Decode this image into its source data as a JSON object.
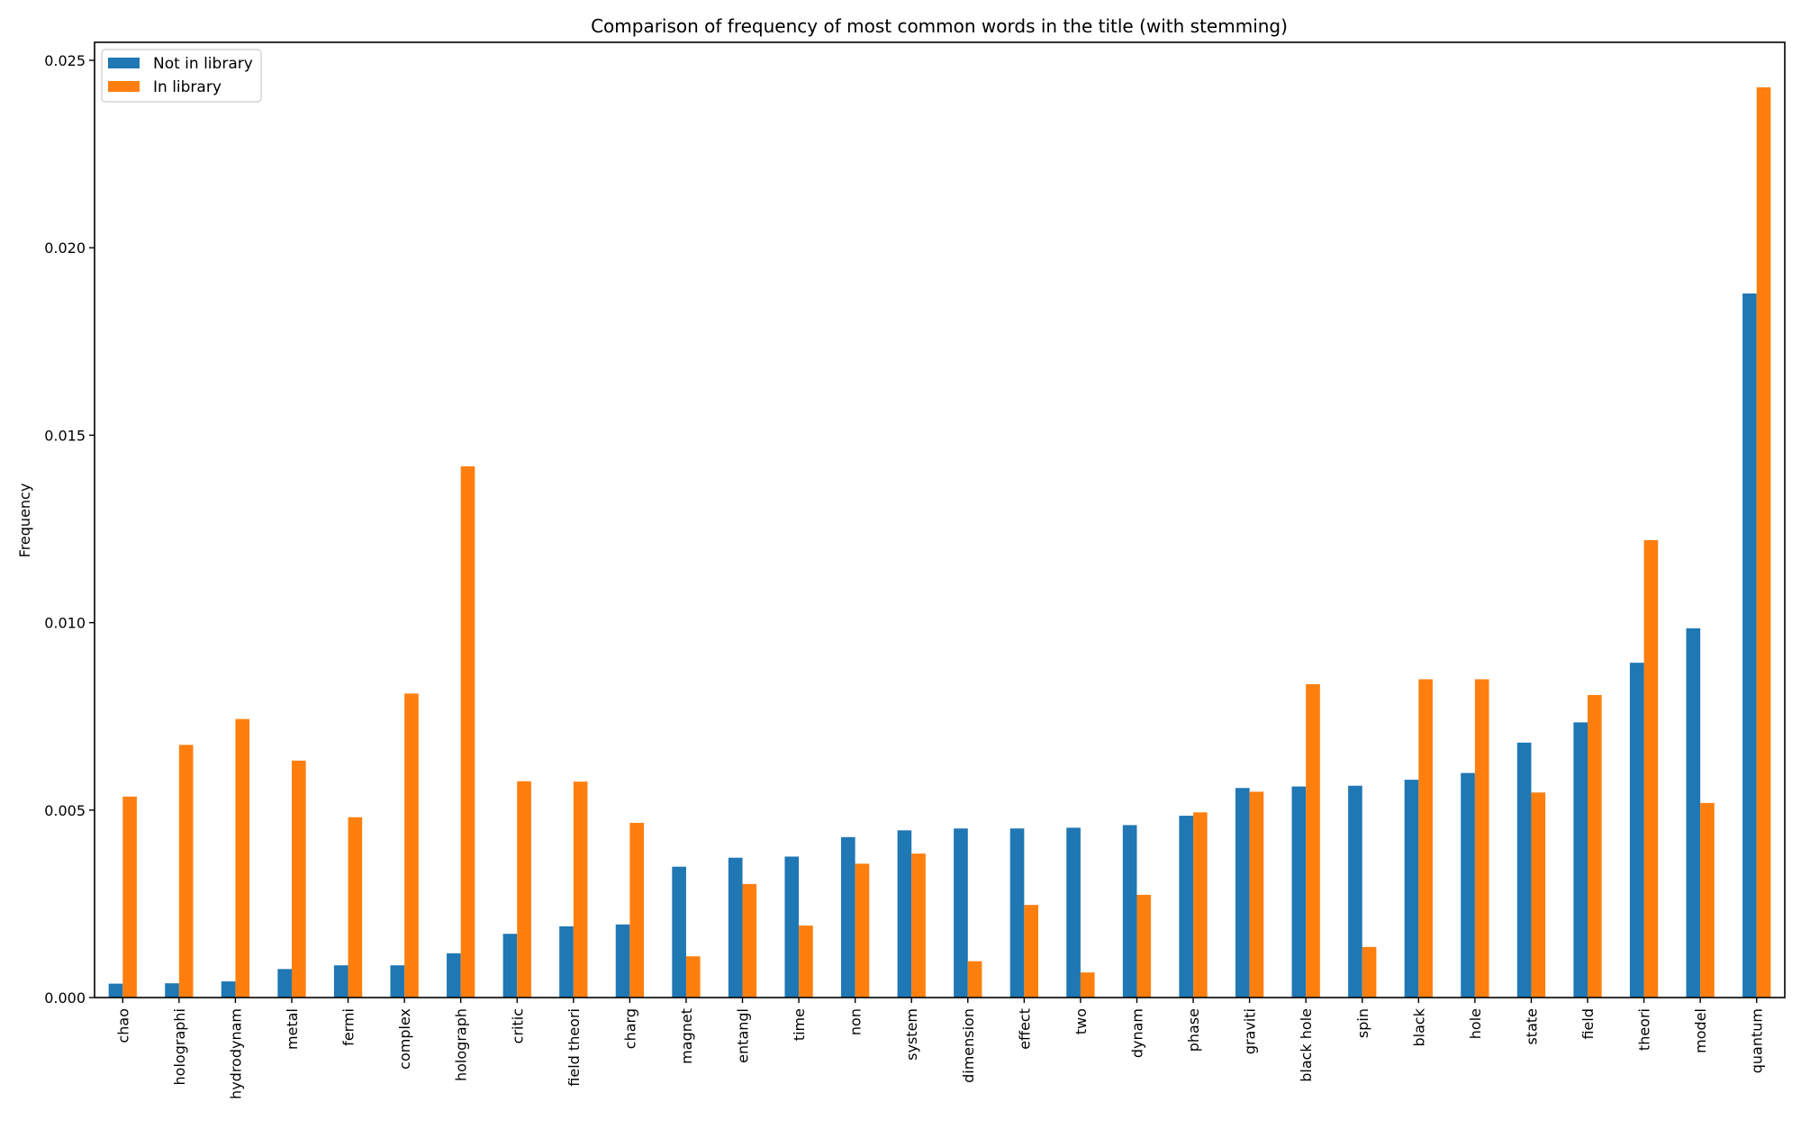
{
  "chart_data": {
    "type": "bar",
    "title": "Comparison of frequency of most common words in the title (with stemming)",
    "xlabel": "",
    "ylabel": "Frequency",
    "ylim": [
      0,
      0.0255
    ],
    "yticks": [
      "0.000",
      "0.005",
      "0.010",
      "0.015",
      "0.020",
      "0.025"
    ],
    "ytick_values": [
      0,
      0.005,
      0.01,
      0.015,
      0.02,
      0.025
    ],
    "grid": false,
    "legend_position": "upper left",
    "categories": [
      "chao",
      "holographi",
      "hydrodynam",
      "metal",
      "fermi",
      "complex",
      "holograph",
      "critic",
      "field theori",
      "charg",
      "magnet",
      "entangl",
      "time",
      "non",
      "system",
      "dimension",
      "effect",
      "two",
      "dynam",
      "phase",
      "graviti",
      "black hole",
      "spin",
      "black",
      "hole",
      "state",
      "field",
      "theori",
      "model",
      "quantum"
    ],
    "series": [
      {
        "name": "Not in library",
        "color": "#1f77b4",
        "values": [
          0.00037,
          0.00038,
          0.00043,
          0.00076,
          0.00086,
          0.00086,
          0.00118,
          0.0017,
          0.0019,
          0.00195,
          0.00349,
          0.00373,
          0.00376,
          0.00428,
          0.00446,
          0.00451,
          0.00451,
          0.00453,
          0.0046,
          0.00485,
          0.00559,
          0.00563,
          0.00565,
          0.00581,
          0.00599,
          0.0068,
          0.00734,
          0.00893,
          0.00985,
          0.01878
        ]
      },
      {
        "name": "In library",
        "color": "#ff7f0e",
        "values": [
          0.00536,
          0.00674,
          0.00743,
          0.00632,
          0.00481,
          0.00811,
          0.01417,
          0.00577,
          0.00576,
          0.00466,
          0.0011,
          0.00303,
          0.00192,
          0.00357,
          0.00384,
          0.00097,
          0.00247,
          0.00067,
          0.00274,
          0.00494,
          0.00549,
          0.00836,
          0.00135,
          0.00849,
          0.00849,
          0.00547,
          0.00807,
          0.0122,
          0.00519,
          0.02428
        ]
      }
    ]
  }
}
